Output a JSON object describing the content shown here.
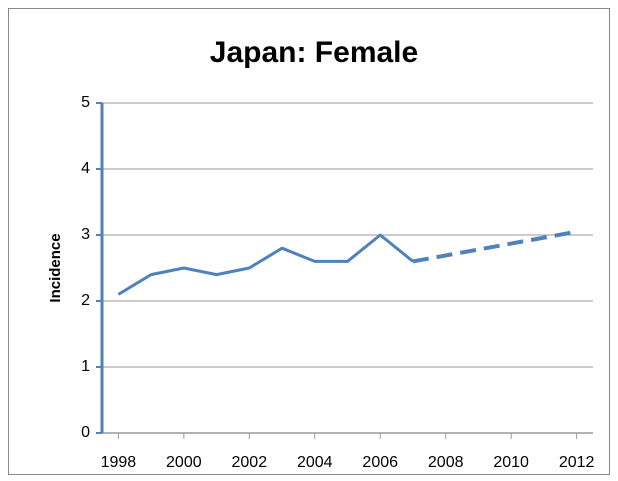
{
  "chart_data": {
    "type": "line",
    "title": "Japan: Female",
    "ylabel": "Incidence",
    "x": [
      1998,
      1999,
      2000,
      2001,
      2002,
      2003,
      2004,
      2005,
      2006,
      2007,
      2008,
      2009,
      2010,
      2011,
      2012
    ],
    "series": [
      {
        "color": "#4f81bd",
        "style": "solid",
        "values": [
          2.1,
          2.4,
          2.5,
          2.4,
          2.5,
          2.8,
          2.6,
          2.6,
          3.0,
          2.6,
          null,
          null,
          null,
          null,
          null
        ]
      },
      {
        "color": "#4f81bd",
        "style": "dashed",
        "values": [
          null,
          null,
          null,
          null,
          null,
          null,
          null,
          null,
          null,
          2.6,
          2.69,
          2.78,
          2.87,
          2.96,
          3.05
        ]
      }
    ],
    "xlim": [
      1997.5,
      2012.5
    ],
    "xticks": [
      1998,
      2000,
      2002,
      2004,
      2006,
      2008,
      2010,
      2012
    ],
    "ylim": [
      0,
      5
    ],
    "yticks": [
      0,
      1,
      2,
      3,
      4,
      5
    ],
    "grid": true
  }
}
